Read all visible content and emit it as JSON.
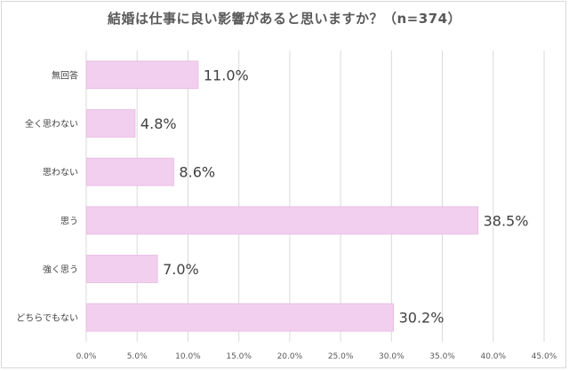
{
  "chart_data": {
    "type": "bar",
    "orientation": "horizontal",
    "title": "結婚は仕事に良い影響があると思いますか？（n=374）",
    "categories": [
      "無回答",
      "全く思わない",
      "思わない",
      "思う",
      "強く思う",
      "どちらでもない"
    ],
    "values": [
      11.0,
      4.8,
      8.6,
      38.5,
      7.0,
      30.2
    ],
    "value_labels": [
      "11.0%",
      "4.8%",
      "8.6%",
      "38.5%",
      "7.0%",
      "30.2%"
    ],
    "x_ticks": [
      "0.0%",
      "5.0%",
      "10.0%",
      "15.0%",
      "20.0%",
      "25.0%",
      "30.0%",
      "35.0%",
      "40.0%",
      "45.0%"
    ],
    "xlim": [
      0,
      45
    ],
    "xlabel": "",
    "ylabel": "",
    "grid": true,
    "bar_color": "#f2cfee",
    "bar_border_color": "#e6b9e0",
    "grid_color": "#d9d9d9"
  }
}
